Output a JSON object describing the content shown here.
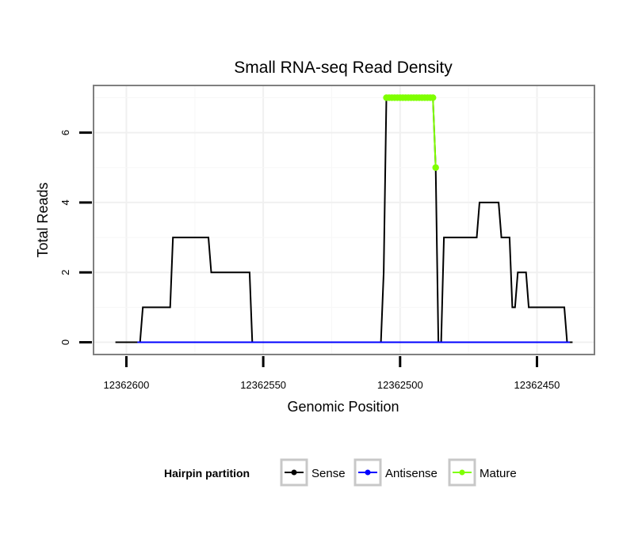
{
  "chart_data": {
    "type": "line",
    "title": "Small RNA-seq Read Density",
    "xlabel": "Genomic Position",
    "ylabel": "Total Reads",
    "x_reversed": true,
    "xlim": [
      12362612,
      12362429
    ],
    "ylim": [
      -0.35,
      7.35
    ],
    "x_ticks": [
      12362600,
      12362550,
      12362500,
      12362450
    ],
    "x_tick_labels": [
      "12362600",
      "12362550",
      "12362500",
      "12362450"
    ],
    "y_ticks": [
      0,
      2,
      4,
      6
    ],
    "y_tick_labels": [
      "0",
      "2",
      "4",
      "6"
    ],
    "grid": true,
    "legend": {
      "title": "Hairpin partition",
      "position": "bottom",
      "entries": [
        "Sense",
        "Antisense",
        "Mature"
      ]
    },
    "series": [
      {
        "name": "Sense",
        "color": "#000000",
        "marker": "none",
        "points": [
          [
            12362604,
            0
          ],
          [
            12362595,
            0
          ],
          [
            12362594,
            1
          ],
          [
            12362584,
            1
          ],
          [
            12362583,
            3
          ],
          [
            12362570,
            3
          ],
          [
            12362569,
            2
          ],
          [
            12362555,
            2
          ],
          [
            12362554,
            0
          ],
          [
            12362507,
            0
          ],
          [
            12362506,
            2
          ],
          [
            12362505,
            7
          ],
          [
            12362488,
            7
          ],
          [
            12362487,
            5
          ],
          [
            12362486,
            0
          ],
          [
            12362485,
            0
          ],
          [
            12362484,
            3
          ],
          [
            12362472,
            3
          ],
          [
            12362471,
            4
          ],
          [
            12362464,
            4
          ],
          [
            12362463,
            3
          ],
          [
            12362460,
            3
          ],
          [
            12362459,
            1
          ],
          [
            12362458,
            1
          ],
          [
            12362457,
            2
          ],
          [
            12362454,
            2
          ],
          [
            12362453,
            1
          ],
          [
            12362440,
            1
          ],
          [
            12362439,
            0
          ],
          [
            12362437,
            0
          ]
        ]
      },
      {
        "name": "Antisense",
        "color": "#0000ff",
        "marker": "none",
        "points": [
          [
            12362596,
            0
          ],
          [
            12362438,
            0
          ]
        ]
      },
      {
        "name": "Mature",
        "color": "#7fff00",
        "marker": "dot",
        "points": [
          [
            12362505,
            7
          ],
          [
            12362504,
            7
          ],
          [
            12362503,
            7
          ],
          [
            12362502,
            7
          ],
          [
            12362501,
            7
          ],
          [
            12362500,
            7
          ],
          [
            12362499,
            7
          ],
          [
            12362498,
            7
          ],
          [
            12362497,
            7
          ],
          [
            12362496,
            7
          ],
          [
            12362495,
            7
          ],
          [
            12362494,
            7
          ],
          [
            12362493,
            7
          ],
          [
            12362492,
            7
          ],
          [
            12362491,
            7
          ],
          [
            12362490,
            7
          ],
          [
            12362489,
            7
          ],
          [
            12362488,
            7
          ],
          [
            12362487,
            5
          ]
        ]
      }
    ]
  }
}
